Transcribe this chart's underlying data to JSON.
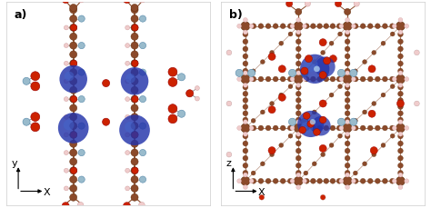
{
  "panel_a_label": "a)",
  "panel_b_label": "b)",
  "panel_a_axis_y": "y",
  "panel_a_axis_x": "X",
  "panel_b_axis_y": "z",
  "panel_b_axis_x": "X",
  "background_color": "#ffffff",
  "figure_width": 4.74,
  "figure_height": 2.3,
  "dpi": 100,
  "label_fontsize": 9,
  "brown": "#8B4A2A",
  "red": "#CC2200",
  "blue_blob": "#2233AA",
  "light_blue": "#99BBCC",
  "pink_atom": "#F0CCCC",
  "pink_outline": "#CC9999"
}
